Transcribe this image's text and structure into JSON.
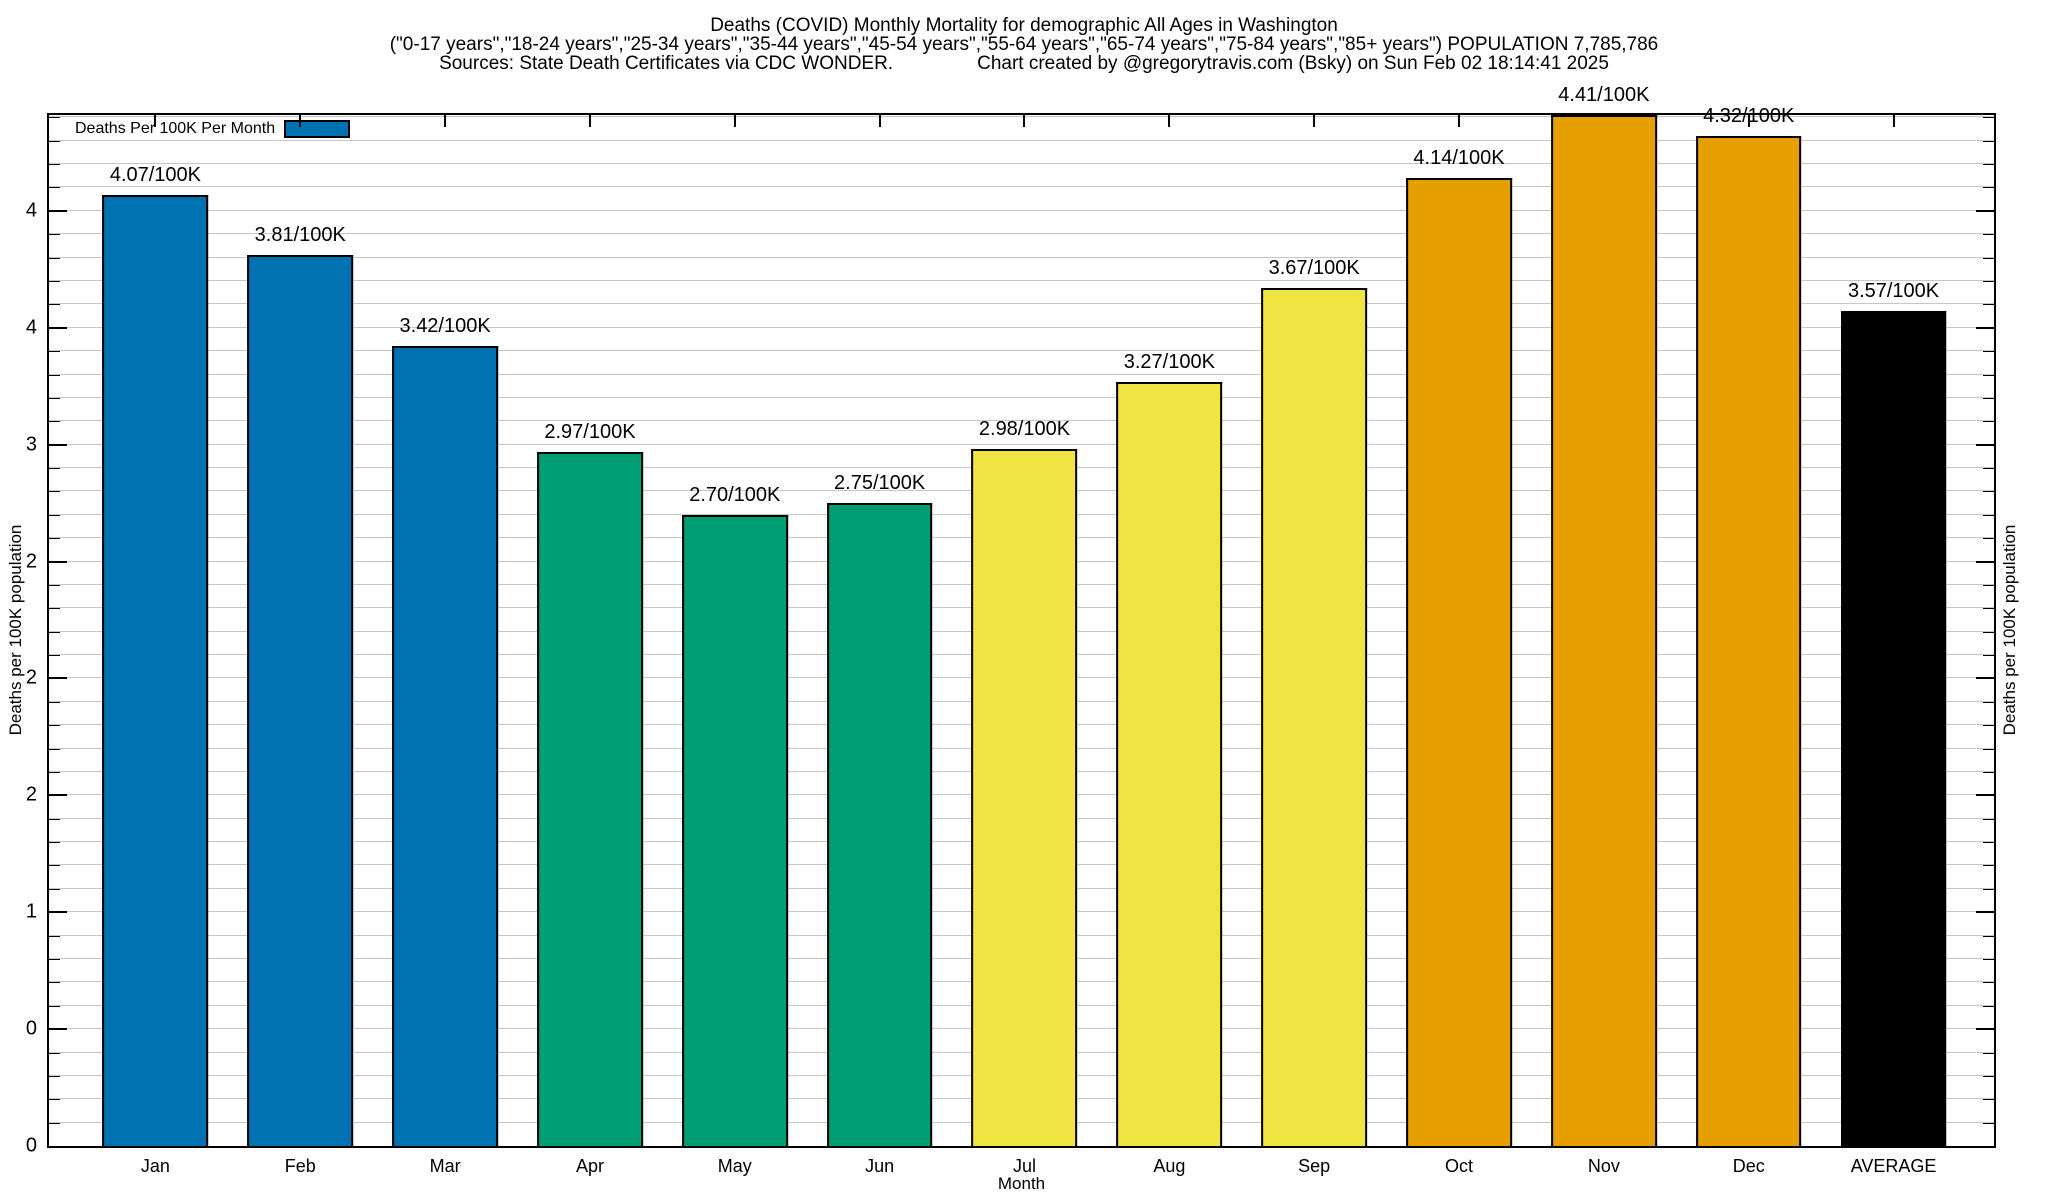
{
  "header": {
    "title": "Deaths (COVID) Monthly Mortality for demographic All Ages in Washington",
    "subtitle": "(\"0-17 years\",\"18-24 years\",\"25-34 years\",\"35-44 years\",\"45-54 years\",\"55-64 years\",\"65-74 years\",\"75-84 years\",\"85+ years\") POPULATION 7,785,786",
    "sources": "Sources: State Death Certificates via CDC WONDER.",
    "credit": "Chart created by @gregorytravis.com (Bsky) on Sun Feb 02 18:14:41 2025"
  },
  "legend": {
    "label": "Deaths Per 100K Per Month",
    "swatch_color": "#0072B2"
  },
  "axes": {
    "x_label": "Month",
    "y_label_left": "Deaths per 100K population",
    "y_label_right": "Deaths per 100K population",
    "y_max": 4.41,
    "grid_step": 0.1,
    "y_ticks": [
      {
        "value": 0.0,
        "label": "0"
      },
      {
        "value": 0.5,
        "label": "0"
      },
      {
        "value": 1.0,
        "label": "1"
      },
      {
        "value": 1.5,
        "label": "2"
      },
      {
        "value": 2.0,
        "label": "2"
      },
      {
        "value": 2.5,
        "label": "2"
      },
      {
        "value": 3.0,
        "label": "3"
      },
      {
        "value": 3.5,
        "label": "4"
      },
      {
        "value": 4.0,
        "label": "4"
      }
    ]
  },
  "colors": {
    "blue": "#0072B2",
    "green": "#009E73",
    "yellow": "#F0E442",
    "orange": "#E69F00",
    "black": "#000000",
    "grid": "#c6c6c6"
  },
  "chart_data": {
    "type": "bar",
    "title": "Deaths (COVID) Monthly Mortality for demographic All Ages in Washington",
    "subtitle": "(\"0-17 years\",\"18-24 years\",\"25-34 years\",\"35-44 years\",\"45-54 years\",\"55-64 years\",\"65-74 years\",\"75-84 years\",\"85+ years\") POPULATION 7,785,786",
    "source_note": "Sources: State Death Certificates via CDC WONDER.",
    "credit_note": "Chart created by @gregorytravis.com (Bsky) on Sun Feb 02 18:14:41 2025",
    "legend": "Deaths Per 100K Per Month",
    "xlabel": "Month",
    "ylabel": "Deaths per 100K population",
    "ylim": [
      0,
      4.41
    ],
    "grid": "horizontal, light gray, every 0.1",
    "legend_position": "top-left inside plot",
    "categories": [
      "Jan",
      "Feb",
      "Mar",
      "Apr",
      "May",
      "Jun",
      "Jul",
      "Aug",
      "Sep",
      "Oct",
      "Nov",
      "Dec",
      "AVERAGE"
    ],
    "values": [
      4.07,
      3.81,
      3.42,
      2.97,
      2.7,
      2.75,
      2.98,
      3.27,
      3.67,
      4.14,
      4.41,
      4.32,
      3.57
    ],
    "bar_labels": [
      "4.07/100K",
      "3.81/100K",
      "3.42/100K",
      "2.97/100K",
      "2.70/100K",
      "2.75/100K",
      "2.98/100K",
      "3.27/100K",
      "3.67/100K",
      "4.14/100K",
      "4.41/100K",
      "4.32/100K",
      "3.57/100K"
    ],
    "bar_colors": [
      "#0072B2",
      "#0072B2",
      "#0072B2",
      "#009E73",
      "#009E73",
      "#009E73",
      "#F0E442",
      "#F0E442",
      "#F0E442",
      "#E69F00",
      "#E69F00",
      "#E69F00",
      "#000000"
    ]
  }
}
